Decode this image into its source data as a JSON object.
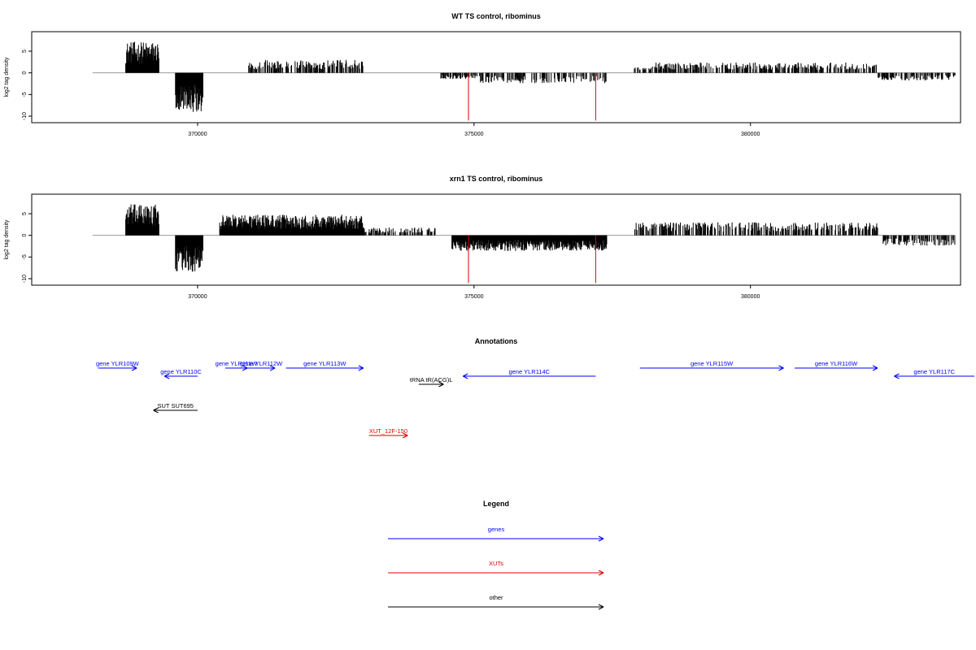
{
  "colors": {
    "bar": "#000000",
    "marker": "#e00000",
    "gene": "#0000ff",
    "xut": "#e00000",
    "other": "#000000",
    "frame": "#000000",
    "baseline": "#9a9a9a"
  },
  "chart_data": [
    {
      "type": "bar",
      "title": "WT TS control, ribominus",
      "ylabel": "log2 tag density",
      "xlim": [
        367000,
        383800
      ],
      "ylim": [
        -11.5,
        9.5
      ],
      "xticks": [
        370000,
        375000,
        380000
      ],
      "yticks": [
        -10,
        -5,
        0,
        5
      ],
      "markers_x": [
        374900,
        377200
      ],
      "segments": [
        {
          "start": 368700,
          "end": 369300,
          "amp": 6.0,
          "dir": 1
        },
        {
          "start": 369600,
          "end": 370100,
          "amp": -7.5,
          "dir": -1
        },
        {
          "start": 370900,
          "end": 373000,
          "amp": 2.5,
          "dir": 1
        },
        {
          "start": 374400,
          "end": 375100,
          "amp": -1.2,
          "dir": -1
        },
        {
          "start": 375100,
          "end": 377400,
          "amp": -2.0,
          "dir": -1
        },
        {
          "start": 377900,
          "end": 382300,
          "amp": 2.0,
          "dir": 1
        },
        {
          "start": 382300,
          "end": 383700,
          "amp": -1.5,
          "dir": -1
        }
      ]
    },
    {
      "type": "bar",
      "title": "xrn1 TS control, ribominus",
      "ylabel": "log2 tag density",
      "xlim": [
        367000,
        383800
      ],
      "ylim": [
        -11.5,
        9.5
      ],
      "xticks": [
        370000,
        375000,
        380000
      ],
      "yticks": [
        -10,
        -5,
        0,
        5
      ],
      "markers_x": [
        374900,
        377200
      ],
      "segments": [
        {
          "start": 368700,
          "end": 369300,
          "amp": 6.0,
          "dir": 1
        },
        {
          "start": 369600,
          "end": 370100,
          "amp": -7.0,
          "dir": -1
        },
        {
          "start": 370400,
          "end": 373000,
          "amp": 4.0,
          "dir": 1
        },
        {
          "start": 373000,
          "end": 374300,
          "amp": 1.5,
          "dir": 1
        },
        {
          "start": 374600,
          "end": 377400,
          "amp": -3.0,
          "dir": -1
        },
        {
          "start": 377900,
          "end": 382300,
          "amp": 2.5,
          "dir": 1
        },
        {
          "start": 382400,
          "end": 383700,
          "amp": -2.0,
          "dir": -1
        }
      ]
    }
  ],
  "annotations": {
    "title": "Annotations",
    "items": [
      {
        "label": "gene YLR109W",
        "start": 368200,
        "end": 368900,
        "dir": 1,
        "row": 0,
        "kind": "gene"
      },
      {
        "label": "gene YLR110C",
        "start": 369400,
        "end": 370000,
        "dir": -1,
        "row": 1,
        "kind": "gene"
      },
      {
        "label": "gene YLR111W",
        "start": 370500,
        "end": 370900,
        "dir": 1,
        "row": 0,
        "kind": "gene"
      },
      {
        "label": "gene YLR112W",
        "start": 370900,
        "end": 371400,
        "dir": 1,
        "row": 0,
        "kind": "gene"
      },
      {
        "label": "gene YLR113W",
        "start": 371600,
        "end": 373000,
        "dir": 1,
        "row": 0,
        "kind": "gene"
      },
      {
        "label": "tRNA tR(ACG)L",
        "start": 374000,
        "end": 374450,
        "dir": 1,
        "row": 2,
        "kind": "other"
      },
      {
        "label": "gene YLR114C",
        "start": 374800,
        "end": 377200,
        "dir": -1,
        "row": 1,
        "kind": "gene"
      },
      {
        "label": "gene YLR115W",
        "start": 378000,
        "end": 380600,
        "dir": 1,
        "row": 0,
        "kind": "gene"
      },
      {
        "label": "gene YLR116W",
        "start": 380800,
        "end": 382300,
        "dir": 1,
        "row": 0,
        "kind": "gene"
      },
      {
        "label": "gene YLR117C",
        "start": 382600,
        "end": 384300,
        "dir": -1,
        "row": 1,
        "kind": "gene"
      },
      {
        "label": "SUT SUT695",
        "start": 369200,
        "end": 370000,
        "dir": -1,
        "row": 3,
        "kind": "other"
      },
      {
        "label": "XUT_12F-150",
        "start": 373100,
        "end": 373800,
        "dir": 1,
        "row": 4,
        "kind": "xut"
      }
    ]
  },
  "legend": {
    "title": "Legend",
    "items": [
      {
        "label": "genes",
        "kind": "gene"
      },
      {
        "label": "XUTs",
        "kind": "xut"
      },
      {
        "label": "other",
        "kind": "other"
      }
    ]
  }
}
